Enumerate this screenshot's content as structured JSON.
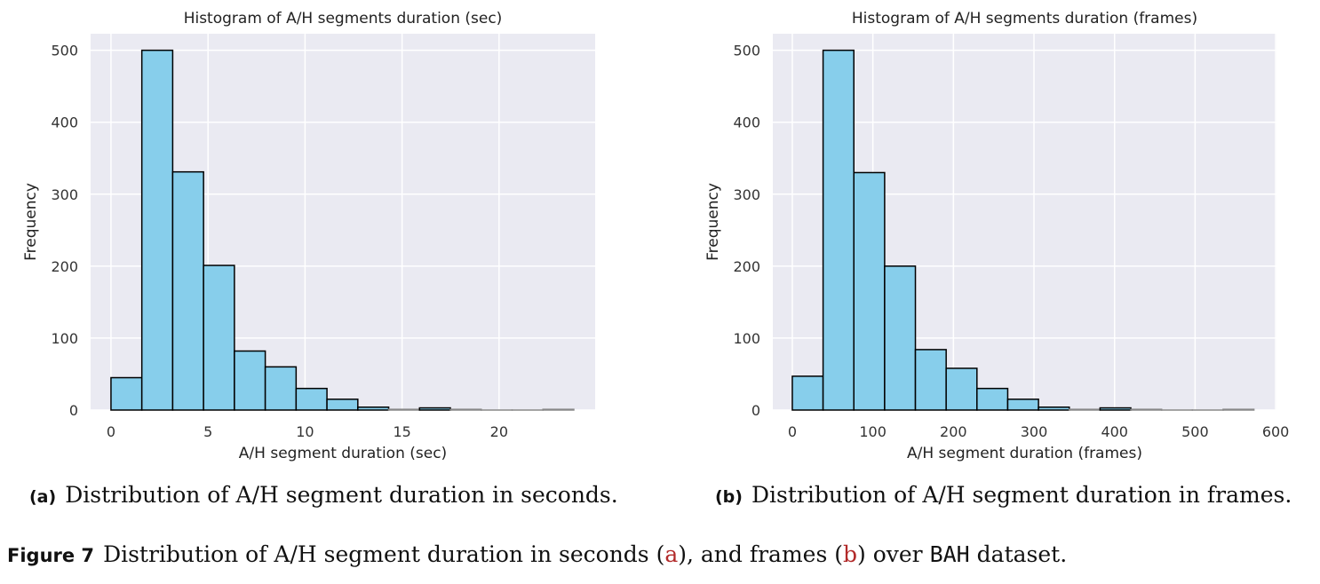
{
  "chart_data": [
    {
      "type": "bar",
      "title": "Histogram of A/H segments duration (sec)",
      "xlabel": "A/H segment duration (sec)",
      "ylabel": "Frequency",
      "bin_edges_start": 0,
      "bin_width": 1.59,
      "values": [
        45,
        500,
        331,
        201,
        82,
        60,
        30,
        15,
        4,
        1,
        3,
        1,
        0,
        0,
        1
      ],
      "xlim": [
        -1.05,
        24.95
      ],
      "ylim": [
        0,
        523
      ],
      "xticks": [
        0,
        5,
        10,
        15,
        20
      ],
      "yticks": [
        0,
        100,
        200,
        300,
        400,
        500
      ],
      "grid": true
    },
    {
      "type": "bar",
      "title": "Histogram of A/H segments duration (frames)",
      "xlabel": "A/H segment duration (frames)",
      "ylabel": "Frequency",
      "bin_edges_start": 0,
      "bin_width": 38.2,
      "values": [
        47,
        500,
        330,
        200,
        84,
        58,
        30,
        15,
        4,
        1,
        3,
        1,
        0,
        0,
        1
      ],
      "xlim": [
        -24.2,
        601
      ],
      "ylim": [
        0,
        523
      ],
      "xticks": [
        0,
        100,
        200,
        300,
        400,
        500,
        600
      ],
      "yticks": [
        0,
        100,
        200,
        300,
        400,
        500
      ],
      "grid": true
    }
  ],
  "captions": {
    "a_label": "(a)",
    "a_text": "Distribution of A/H segment duration in seconds.",
    "b_label": "(b)",
    "b_text": "Distribution of A/H segment duration in frames.",
    "fig_label": "Figure 7",
    "fig_text_1": "Distribution of A/H segment duration in seconds (",
    "fig_ref_a": "a",
    "fig_text_2": "), and frames (",
    "fig_ref_b": "b",
    "fig_text_3": ") over ",
    "fig_dataset": "BAH",
    "fig_text_4": " dataset."
  },
  "colors": {
    "bar": "#87ceeb",
    "panel": "#eaeaf2",
    "grid": "#ffffff",
    "edge": "#000000"
  }
}
